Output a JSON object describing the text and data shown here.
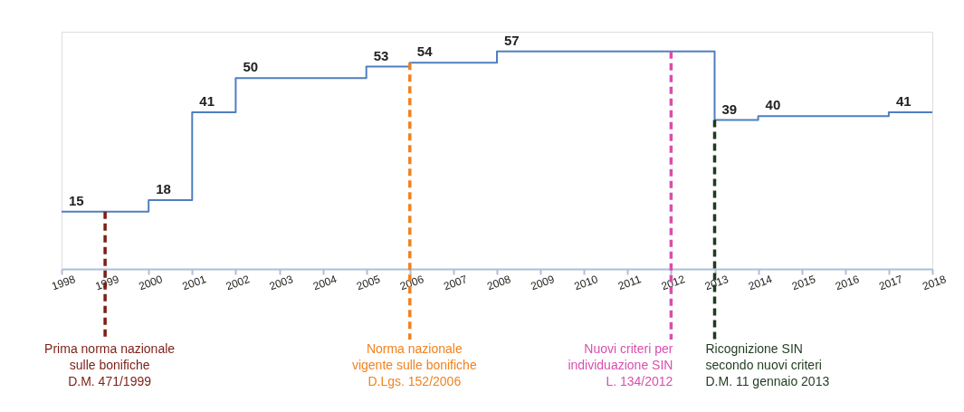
{
  "chart_data": {
    "type": "step",
    "x": [
      1998,
      2000,
      2001,
      2002,
      2005,
      2006,
      2008,
      2013,
      2014,
      2017,
      2018
    ],
    "values": [
      15,
      18,
      41,
      50,
      53,
      54,
      57,
      39,
      40,
      41,
      41
    ],
    "value_labels": [
      "15",
      "18",
      "41",
      "50",
      "53",
      "54",
      "57",
      "39",
      "40",
      "41",
      null
    ],
    "color": "#4f7fc0",
    "xlim": [
      1998,
      2018
    ],
    "xticks": [
      1998,
      1999,
      2000,
      2001,
      2002,
      2003,
      2004,
      2005,
      2006,
      2007,
      2008,
      2009,
      2010,
      2011,
      2012,
      2013,
      2014,
      2015,
      2016,
      2017,
      2018
    ],
    "tick_labels": "x",
    "grid": false,
    "ref_lines": [
      {
        "axis": "x",
        "value": 1999,
        "label": "Prima norma  nazionale\nsulle bonifiche\nD.M. 471/1999",
        "color": "#7b1f14",
        "line_style": "dashed"
      },
      {
        "axis": "x",
        "value": 2006,
        "label": "Norma nazionale\nvigente sulle bonifiche\nD.Lgs. 152/2006",
        "color": "#f0821e",
        "line_style": "dashed"
      },
      {
        "axis": "x",
        "value": 2012,
        "label": "Nuovi criteri per\nindividuazione SIN\nL. 134/2012",
        "color": "#d84fae",
        "line_style": "dashed"
      },
      {
        "axis": "x",
        "value": 2013,
        "label": "Ricognizione SIN\nsecondo nuovi criteri\nD.M. 11 gennaio 2013",
        "color": "#1f3b1f",
        "line_style": "dashed"
      }
    ]
  }
}
